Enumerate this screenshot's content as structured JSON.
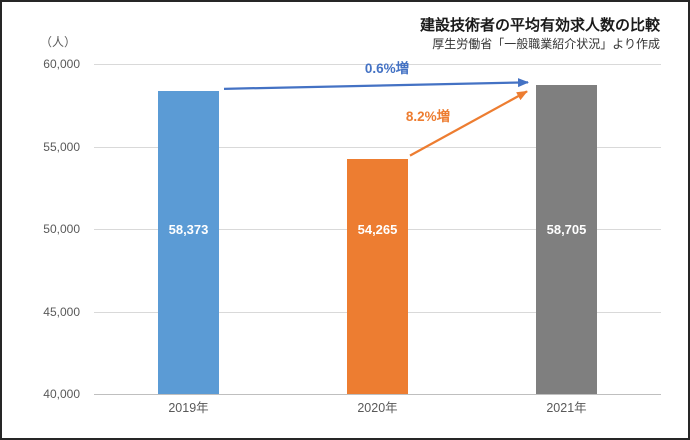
{
  "header": {
    "title": "建設技術者の平均有効求人数の比較",
    "subtitle": "厚生労働省「一般職業紹介状況」より作成"
  },
  "colors": {
    "bar_2019": "#5B9BD5",
    "bar_2020": "#ED7D31",
    "bar_2021": "#7F7F7F",
    "arrow_blue": "#4472C4",
    "arrow_orange": "#ED7D31",
    "gridline": "#D9D9D9",
    "axis_line": "#BFBFBF",
    "tick_text": "#595959",
    "value_label_text": "#FFFFFF"
  },
  "chart_data": {
    "type": "bar",
    "title": "建設技術者の平均有効求人数の比較",
    "subtitle": "厚生労働省「一般職業紹介状況」より作成",
    "unit_label": "（人）",
    "categories": [
      "2019年",
      "2020年",
      "2021年"
    ],
    "values": [
      58373,
      54265,
      58705
    ],
    "value_labels": [
      "58,373",
      "54,265",
      "58,705"
    ],
    "bar_colors": [
      "#5B9BD5",
      "#ED7D31",
      "#7F7F7F"
    ],
    "ylim": [
      40000,
      60000
    ],
    "ytick_step": 5000,
    "yticks": [
      {
        "value": 60000,
        "label": "60,000"
      },
      {
        "value": 55000,
        "label": "55,000"
      },
      {
        "value": 50000,
        "label": "50,000"
      },
      {
        "value": 45000,
        "label": "45,000"
      },
      {
        "value": 40000,
        "label": "40,000"
      }
    ],
    "grid": true,
    "legend": false,
    "annotations": [
      {
        "text": "0.6%増",
        "color": "#4472C4",
        "from_category": "2019年",
        "to_category": "2021年"
      },
      {
        "text": "8.2%増",
        "color": "#ED7D31",
        "from_category": "2020年",
        "to_category": "2021年"
      }
    ]
  }
}
